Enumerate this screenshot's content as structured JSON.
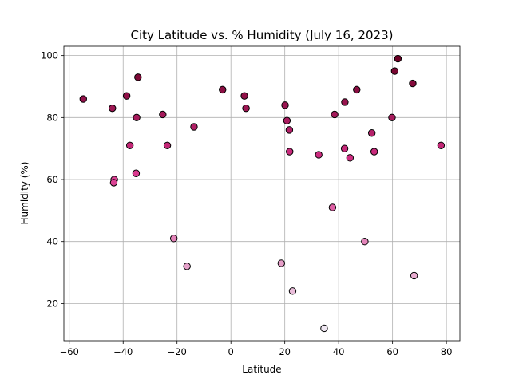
{
  "chart_data": {
    "type": "scatter",
    "title": "City Latitude vs. % Humidity (July 16, 2023)",
    "xlabel": "Latitude",
    "ylabel": "Humidity (%)",
    "xlim": [
      -62,
      85
    ],
    "ylim": [
      8,
      103
    ],
    "xticks": [
      -60,
      -40,
      -20,
      0,
      20,
      40,
      60,
      80
    ],
    "yticks": [
      20,
      40,
      60,
      80,
      100
    ],
    "grid": true,
    "colormap": {
      "low": "#efe7f2",
      "mid": "#d8318a",
      "high": "#6b0025"
    },
    "points": [
      {
        "x": -54.8,
        "y": 86
      },
      {
        "x": -44.0,
        "y": 83
      },
      {
        "x": -43.3,
        "y": 60
      },
      {
        "x": -43.5,
        "y": 59
      },
      {
        "x": -38.7,
        "y": 87
      },
      {
        "x": -37.5,
        "y": 71
      },
      {
        "x": -35.0,
        "y": 80
      },
      {
        "x": -35.2,
        "y": 62
      },
      {
        "x": -34.5,
        "y": 93
      },
      {
        "x": -25.3,
        "y": 81
      },
      {
        "x": -23.6,
        "y": 71
      },
      {
        "x": -21.2,
        "y": 41
      },
      {
        "x": -16.3,
        "y": 32
      },
      {
        "x": -13.7,
        "y": 77
      },
      {
        "x": -3.1,
        "y": 89
      },
      {
        "x": 5.0,
        "y": 87
      },
      {
        "x": 5.6,
        "y": 83
      },
      {
        "x": 18.7,
        "y": 33
      },
      {
        "x": 20.1,
        "y": 84
      },
      {
        "x": 20.8,
        "y": 79
      },
      {
        "x": 21.7,
        "y": 76
      },
      {
        "x": 21.8,
        "y": 69
      },
      {
        "x": 22.9,
        "y": 24
      },
      {
        "x": 32.6,
        "y": 68
      },
      {
        "x": 34.6,
        "y": 12
      },
      {
        "x": 37.7,
        "y": 51
      },
      {
        "x": 38.5,
        "y": 81
      },
      {
        "x": 42.3,
        "y": 85
      },
      {
        "x": 42.2,
        "y": 70
      },
      {
        "x": 44.2,
        "y": 67
      },
      {
        "x": 46.7,
        "y": 89
      },
      {
        "x": 49.7,
        "y": 40
      },
      {
        "x": 52.3,
        "y": 75
      },
      {
        "x": 53.2,
        "y": 69
      },
      {
        "x": 59.8,
        "y": 80
      },
      {
        "x": 60.8,
        "y": 95
      },
      {
        "x": 62.0,
        "y": 99
      },
      {
        "x": 67.5,
        "y": 91
      },
      {
        "x": 68.0,
        "y": 29
      },
      {
        "x": 78.0,
        "y": 71
      }
    ]
  }
}
